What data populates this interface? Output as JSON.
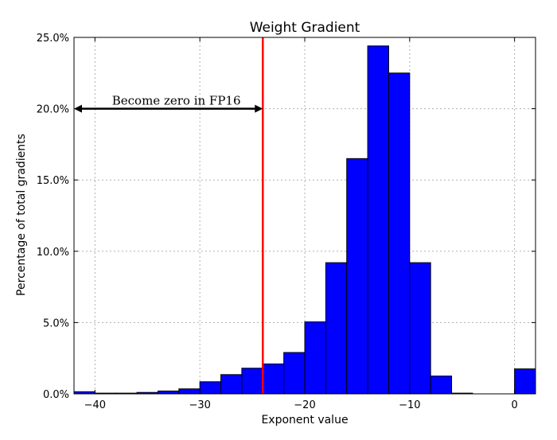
{
  "chart_data": {
    "type": "bar",
    "title": "Weight Gradient",
    "xlabel": "Exponent value",
    "ylabel": "Percentage of total gradients",
    "xlim": [
      -42,
      2
    ],
    "ylim": [
      0,
      25
    ],
    "grid": true,
    "bin_width": 2,
    "bar_color": "#0000ff",
    "x_ticks": [
      -40,
      -30,
      -20,
      -10,
      0
    ],
    "x_tick_labels": [
      "−40",
      "−30",
      "−20",
      "−10",
      "0"
    ],
    "y_ticks": [
      0,
      5,
      10,
      15,
      20,
      25
    ],
    "y_tick_labels": [
      "0.0%",
      "5.0%",
      "10.0%",
      "15.0%",
      "20.0%",
      "25.0%"
    ],
    "bins": [
      {
        "start": -42,
        "value": 0.15
      },
      {
        "start": -40,
        "value": 0.05
      },
      {
        "start": -38,
        "value": 0.05
      },
      {
        "start": -36,
        "value": 0.1
      },
      {
        "start": -34,
        "value": 0.2
      },
      {
        "start": -32,
        "value": 0.35
      },
      {
        "start": -30,
        "value": 0.85
      },
      {
        "start": -28,
        "value": 1.35
      },
      {
        "start": -26,
        "value": 1.8
      },
      {
        "start": -24,
        "value": 2.1
      },
      {
        "start": -22,
        "value": 2.9
      },
      {
        "start": -20,
        "value": 5.05
      },
      {
        "start": -18,
        "value": 9.2
      },
      {
        "start": -16,
        "value": 16.5
      },
      {
        "start": -14,
        "value": 24.4
      },
      {
        "start": -12,
        "value": 22.5
      },
      {
        "start": -10,
        "value": 9.2
      },
      {
        "start": -8,
        "value": 1.25
      },
      {
        "start": -6,
        "value": 0.05
      },
      {
        "start": -4,
        "value": 0
      },
      {
        "start": -2,
        "value": 0
      },
      {
        "start": 0,
        "value": 1.75
      }
    ],
    "threshold_line": {
      "x": -24,
      "color": "#ff0000"
    },
    "annotation": {
      "text": "Become zero in FP16",
      "arrow_from": -42,
      "arrow_to": -24,
      "y": 20
    }
  }
}
